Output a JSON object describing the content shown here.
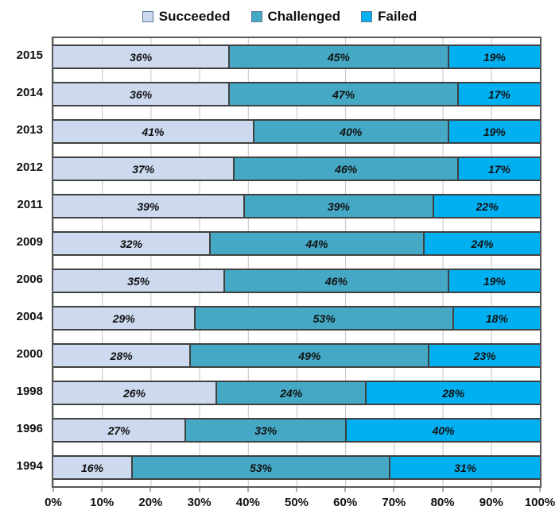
{
  "legend": {
    "items": [
      {
        "label": "Succeeded",
        "color": "#ccd9ee"
      },
      {
        "label": "Challenged",
        "color": "#45a9c5"
      },
      {
        "label": "Failed",
        "color": "#00b0f0"
      }
    ]
  },
  "chart_data": {
    "type": "bar",
    "orientation": "horizontal",
    "stacked": true,
    "normalized_to_100": true,
    "title": "",
    "xlabel": "",
    "ylabel": "",
    "xlim": [
      0,
      100
    ],
    "grid": true,
    "legend_position": "top",
    "value_suffix": "%",
    "categories": [
      "2015",
      "2014",
      "2013",
      "2012",
      "2011",
      "2009",
      "2006",
      "2004",
      "2000",
      "1998",
      "1996",
      "1994"
    ],
    "series": [
      {
        "name": "Succeeded",
        "color": "#ccd9ee",
        "values": [
          36,
          36,
          41,
          37,
          39,
          32,
          35,
          29,
          28,
          26,
          27,
          16
        ]
      },
      {
        "name": "Challenged",
        "color": "#45a9c5",
        "values": [
          45,
          47,
          40,
          46,
          39,
          44,
          46,
          53,
          49,
          24,
          33,
          53
        ]
      },
      {
        "name": "Failed",
        "color": "#00b0f0",
        "values": [
          19,
          17,
          19,
          17,
          22,
          24,
          19,
          18,
          23,
          28,
          40,
          31
        ]
      }
    ],
    "x_ticks": [
      "0%",
      "10%",
      "20%",
      "30%",
      "40%",
      "50%",
      "60%",
      "70%",
      "80%",
      "90%",
      "100%"
    ]
  },
  "colors": {
    "bar_border": "#404040",
    "plot_border": "#595959",
    "gridline": "#c3c3c3",
    "label_text": "#111111"
  }
}
